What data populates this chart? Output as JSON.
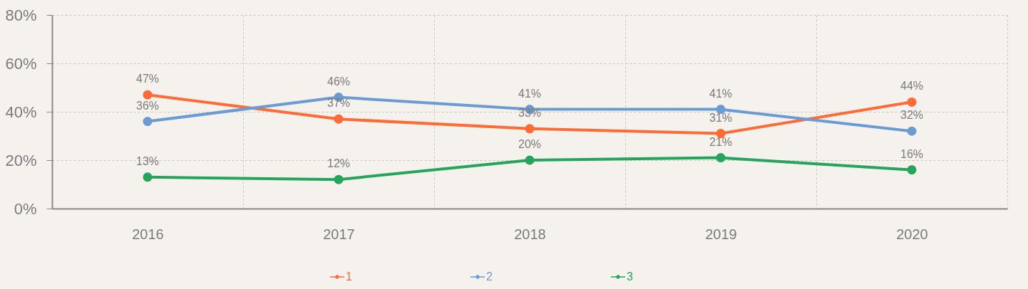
{
  "chart_data": {
    "type": "line",
    "categories": [
      "2016",
      "2017",
      "2018",
      "2019",
      "2020"
    ],
    "series": [
      {
        "name": "1",
        "color": "#ff6a35",
        "values": [
          47,
          37,
          33,
          31,
          44
        ],
        "value_labels": [
          "47%",
          "37%",
          "33%",
          "31%",
          "44%"
        ]
      },
      {
        "name": "2",
        "color": "#6b9bd2",
        "values": [
          36,
          46,
          41,
          41,
          32
        ],
        "value_labels": [
          "36%",
          "46%",
          "41%",
          "41%",
          "32%"
        ]
      },
      {
        "name": "3",
        "color": "#25a55b",
        "values": [
          13,
          12,
          20,
          21,
          16
        ],
        "value_labels": [
          "13%",
          "12%",
          "20%",
          "21%",
          "16%"
        ]
      }
    ],
    "ylim": [
      0,
      80
    ],
    "yticks": [
      {
        "value": 0,
        "label": "0%"
      },
      {
        "value": 20,
        "label": "20%"
      },
      {
        "value": 40,
        "label": "40%"
      },
      {
        "value": 60,
        "label": "60%"
      },
      {
        "value": 80,
        "label": "80%"
      }
    ],
    "grid": true,
    "legend": "bottom",
    "marker": "circle",
    "line_style": "solid"
  }
}
